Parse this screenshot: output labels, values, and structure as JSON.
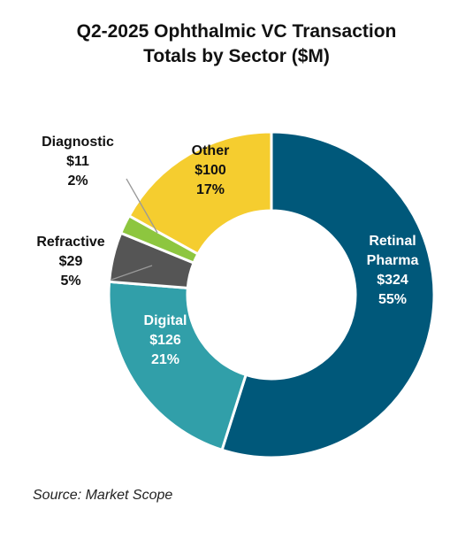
{
  "title_lines": [
    "Q2-2025 Ophthalmic VC Transaction",
    "Totals by Sector ($M)"
  ],
  "source": "Source: Market Scope",
  "chart_data": {
    "type": "pie",
    "style": "donut",
    "title": "Q2-2025 Ophthalmic VC Transaction Totals by Sector ($M)",
    "slices": [
      {
        "name": "Retinal Pharma",
        "label_lines": [
          "Retinal",
          "Pharma"
        ],
        "value": 324,
        "value_label": "$324",
        "percent_label": "55%",
        "color": "#00587a",
        "label_color": "#ffffff"
      },
      {
        "name": "Digital",
        "label_lines": [
          "Digital"
        ],
        "value": 126,
        "value_label": "$126",
        "percent_label": "21%",
        "color": "#319fa9",
        "label_color": "#ffffff"
      },
      {
        "name": "Refractive",
        "label_lines": [
          "Refractive"
        ],
        "value": 29,
        "value_label": "$29",
        "percent_label": "5%",
        "color": "#555555",
        "label_color": "#111111"
      },
      {
        "name": "Diagnostic",
        "label_lines": [
          "Diagnostic"
        ],
        "value": 11,
        "value_label": "$11",
        "percent_label": "2%",
        "color": "#8dc63f",
        "label_color": "#111111"
      },
      {
        "name": "Other",
        "label_lines": [
          "Other"
        ],
        "value": 100,
        "value_label": "$100",
        "percent_label": "17%",
        "color": "#f5cd2f",
        "label_color": "#111111"
      }
    ]
  }
}
